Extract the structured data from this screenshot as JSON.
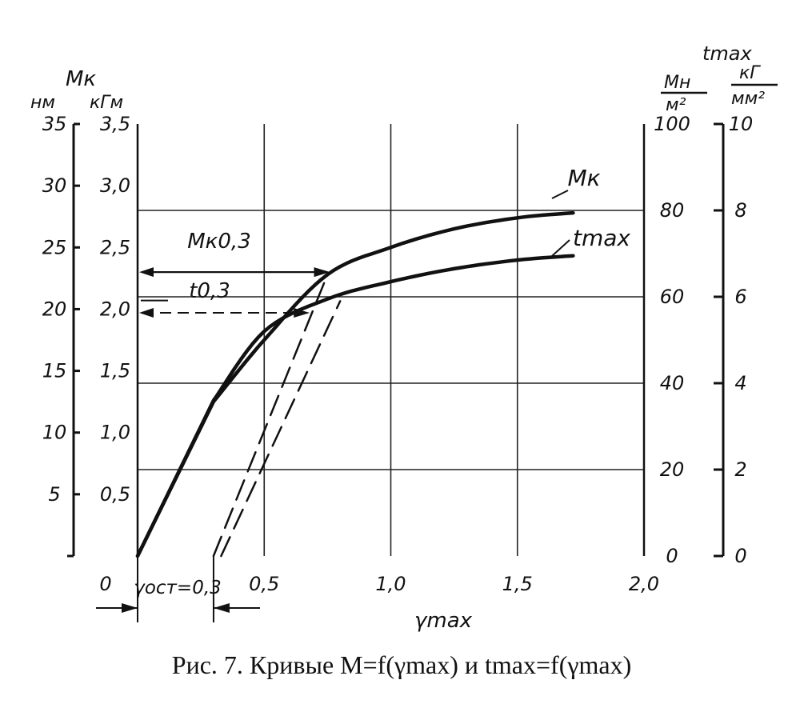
{
  "caption": "Рис. 7. Кривые M=f(γmax) и tmax=f(γmax)",
  "chart_data": {
    "type": "line",
    "x": [
      0,
      0.3,
      0.5,
      0.75,
      1.0,
      1.25,
      1.5,
      1.72
    ],
    "xlabel": "γmax",
    "xlim": [
      0,
      2.0
    ],
    "x_ticks": [
      "0",
      "0,5",
      "1,0",
      "1,5",
      "2,0"
    ],
    "grid": true,
    "series": [
      {
        "name": "Mк",
        "axis": "left (кГм)",
        "values": [
          0,
          1.25,
          1.75,
          2.28,
          2.5,
          2.65,
          2.74,
          2.78
        ]
      },
      {
        "name": "tmax",
        "axis": "right (кГ/мм²)",
        "values": [
          0,
          3.6,
          5.2,
          5.95,
          6.35,
          6.65,
          6.85,
          6.95
        ]
      }
    ],
    "axes": {
      "left_nm": {
        "unit": "нм",
        "ticks": [
          "5",
          "10",
          "15",
          "20",
          "25",
          "30",
          "35"
        ]
      },
      "left_kgm": {
        "title": "Mк",
        "unit": "кГм",
        "ticks": [
          "0,5",
          "1,0",
          "1,5",
          "2,0",
          "2,5",
          "3,0",
          "3,5"
        ]
      },
      "right_mn": {
        "unit_num": "Mн",
        "unit_den": "м²",
        "ticks": [
          "0",
          "20",
          "40",
          "60",
          "80",
          "100"
        ]
      },
      "right_kg": {
        "title": "tmax",
        "unit_num": "кГ",
        "unit_den": "мм²",
        "ticks": [
          "0",
          "2",
          "4",
          "6",
          "8",
          "10"
        ]
      }
    },
    "annotations": {
      "mk03": "Mк0,3",
      "t03": "t0,3",
      "gamma_ost": "γост=0,3",
      "curve_mk": "Mк",
      "curve_tmax": "tmax"
    },
    "unloading_lines": [
      {
        "from_x": 0.3,
        "to_x": 0.75,
        "to_value": 2.28
      },
      {
        "from_x": 0.33,
        "to_x": 0.68,
        "to_value": 1.95
      }
    ]
  }
}
